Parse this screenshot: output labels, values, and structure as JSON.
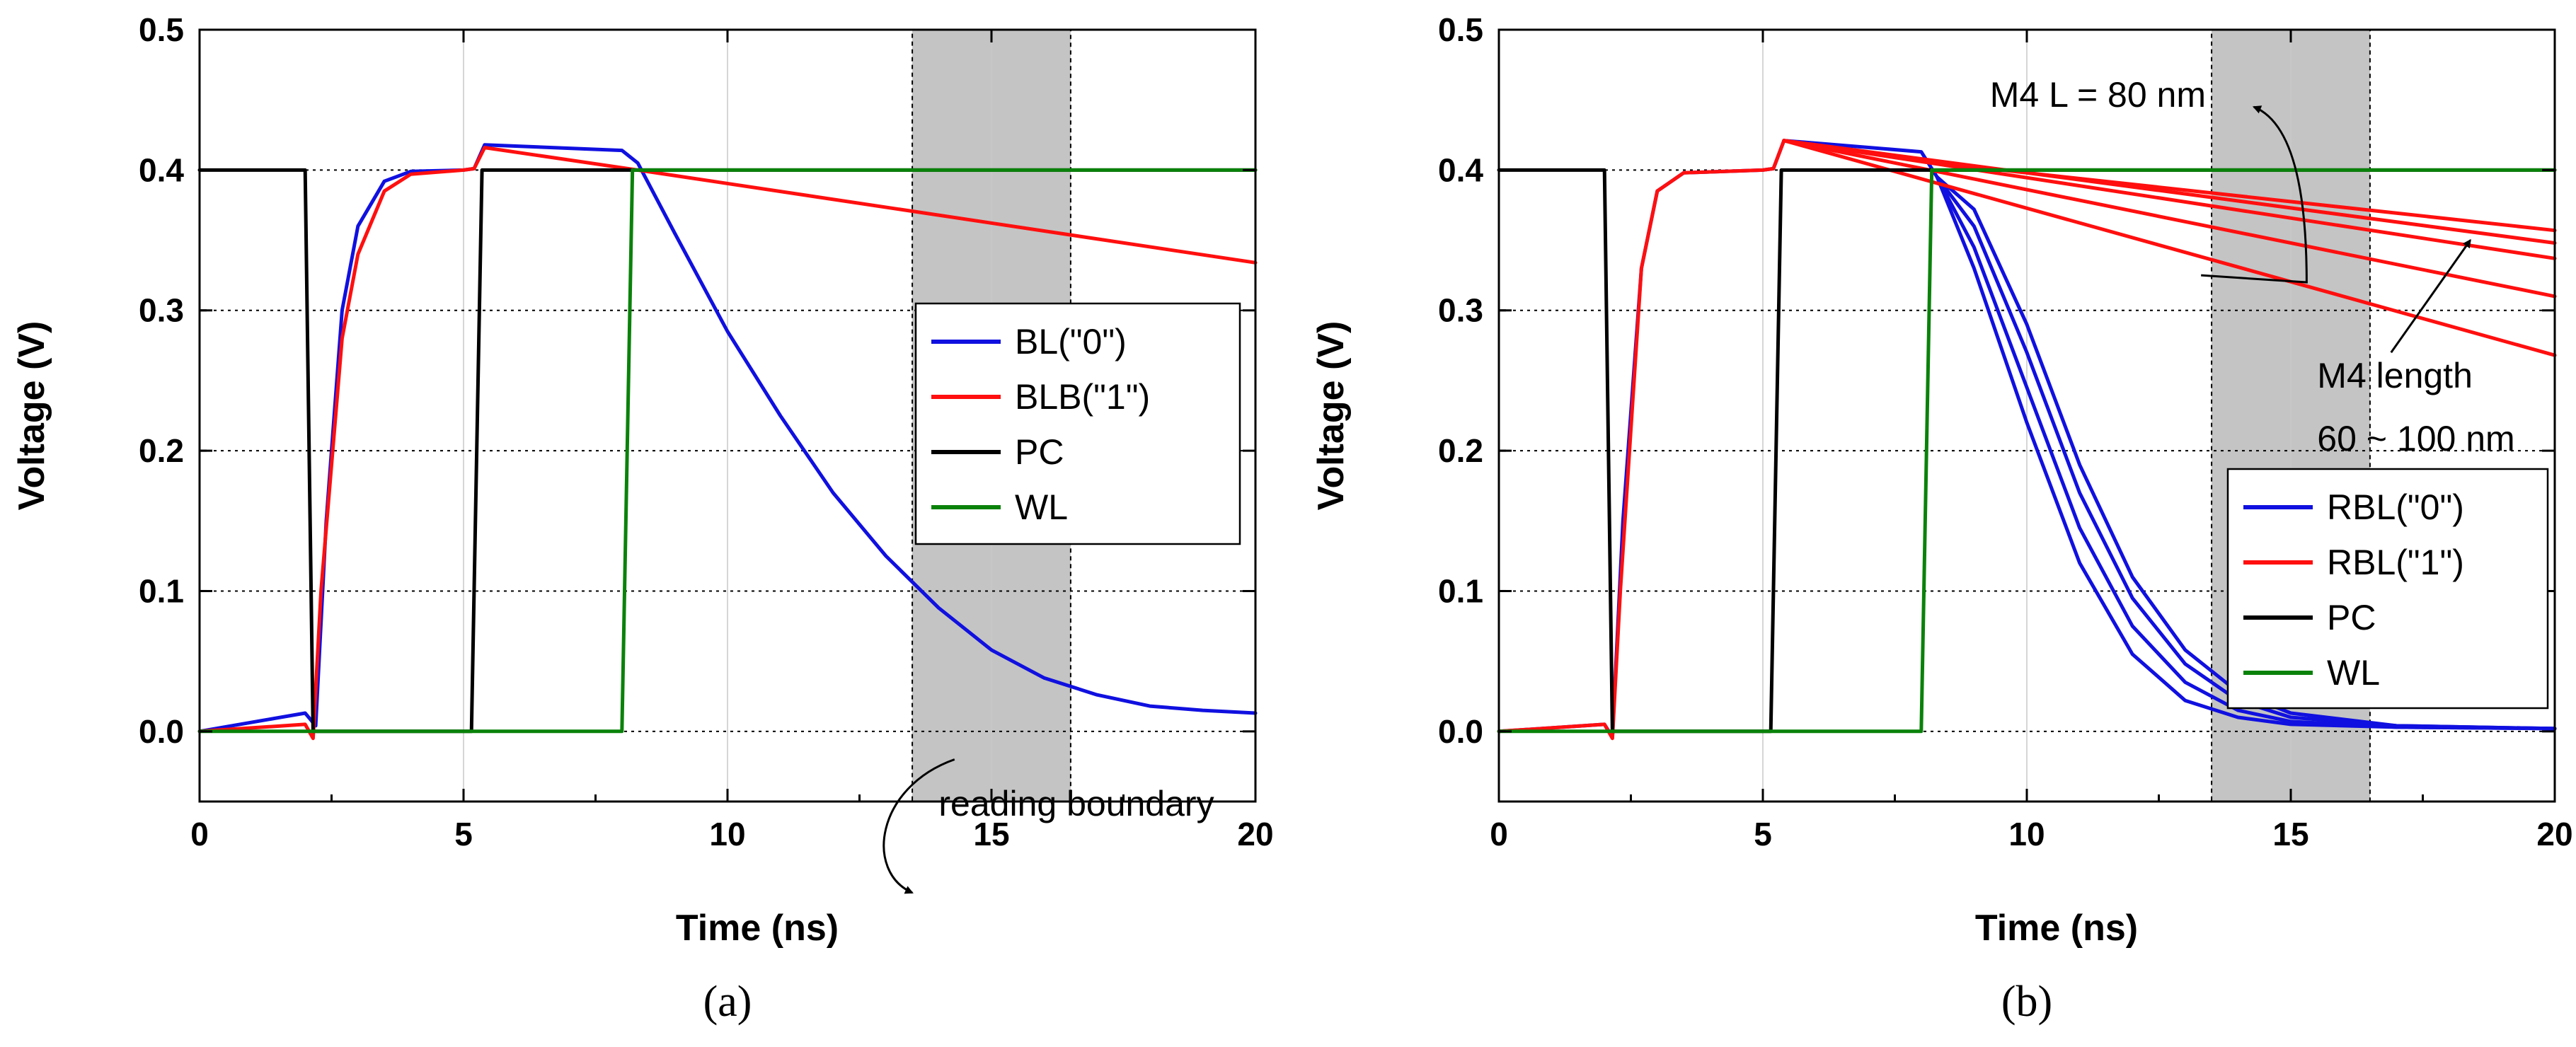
{
  "chart_data": [
    {
      "type": "line",
      "caption": "(a)",
      "xlabel": "Time (ns)",
      "ylabel": "Voltage (V)",
      "xlim": [
        0,
        20
      ],
      "ylim": [
        -0.05,
        0.5
      ],
      "x_ticks": [
        "0",
        "5",
        "10",
        "15",
        "20"
      ],
      "y_ticks": [
        "0.0",
        "0.1",
        "0.2",
        "0.3",
        "0.4",
        "0.5"
      ],
      "shaded_region": [
        13.5,
        16.5
      ],
      "legend_position": "center-right",
      "annotations": [
        {
          "text": "reading boundary",
          "x": 14.0,
          "y": -0.06
        }
      ],
      "series": [
        {
          "name": "BL(\"0\")",
          "color": "#1010e0",
          "points": [
            [
              0,
              0
            ],
            [
              2.0,
              0.013
            ],
            [
              2.2,
              0.004
            ],
            [
              2.4,
              0.15
            ],
            [
              2.7,
              0.3
            ],
            [
              3.0,
              0.36
            ],
            [
              3.5,
              0.392
            ],
            [
              4.0,
              0.399
            ],
            [
              5.0,
              0.4
            ],
            [
              5.2,
              0.401
            ],
            [
              5.4,
              0.418
            ],
            [
              8.0,
              0.414
            ],
            [
              8.3,
              0.405
            ],
            [
              9.0,
              0.355
            ],
            [
              10,
              0.285
            ],
            [
              11,
              0.225
            ],
            [
              12,
              0.17
            ],
            [
              13,
              0.125
            ],
            [
              14,
              0.088
            ],
            [
              15,
              0.058
            ],
            [
              16,
              0.038
            ],
            [
              17,
              0.026
            ],
            [
              18,
              0.018
            ],
            [
              19,
              0.015
            ],
            [
              20,
              0.013
            ]
          ]
        },
        {
          "name": "BLB(\"1\")",
          "color": "#ff0f0f",
          "points": [
            [
              0,
              0
            ],
            [
              2.0,
              0.005
            ],
            [
              2.15,
              -0.005
            ],
            [
              2.3,
              0.1
            ],
            [
              2.7,
              0.28
            ],
            [
              3.0,
              0.34
            ],
            [
              3.5,
              0.385
            ],
            [
              4.0,
              0.397
            ],
            [
              5.0,
              0.4
            ],
            [
              5.2,
              0.401
            ],
            [
              5.4,
              0.416
            ],
            [
              8.3,
              0.4
            ],
            [
              20,
              0.334
            ]
          ]
        },
        {
          "name": "PC",
          "color": "#000000",
          "points": [
            [
              0,
              0.4
            ],
            [
              2.0,
              0.4
            ],
            [
              2.15,
              0.0
            ],
            [
              5.15,
              0.0
            ],
            [
              5.35,
              0.4
            ],
            [
              20,
              0.4
            ]
          ]
        },
        {
          "name": "WL",
          "color": "#0a820a",
          "points": [
            [
              0,
              0
            ],
            [
              8.0,
              0
            ],
            [
              8.2,
              0.4
            ],
            [
              20,
              0.4
            ]
          ]
        }
      ]
    },
    {
      "type": "line",
      "caption": "(b)",
      "xlabel": "Time (ns)",
      "ylabel": "Voltage (V)",
      "xlim": [
        0,
        20
      ],
      "ylim": [
        -0.05,
        0.5
      ],
      "x_ticks": [
        "0",
        "5",
        "10",
        "15",
        "20"
      ],
      "y_ticks": [
        "0.0",
        "0.1",
        "0.2",
        "0.3",
        "0.4",
        "0.5"
      ],
      "shaded_region": [
        13.5,
        16.5
      ],
      "legend_position": "lower-right",
      "annotations": [
        {
          "text": "M4 L = 80 nm",
          "x": 9.3,
          "y": 0.445
        },
        {
          "text": "M4 length",
          "x": 15.5,
          "y": 0.245
        },
        {
          "text": "60 ~ 100 nm",
          "x": 15.5,
          "y": 0.2
        }
      ],
      "series": [
        {
          "name": "RBL(\"0\")",
          "color": "#1010e0",
          "points": [
            [
              0,
              0
            ],
            [
              2.0,
              0.005
            ],
            [
              2.15,
              -0.004
            ],
            [
              2.35,
              0.15
            ],
            [
              2.7,
              0.33
            ],
            [
              3.0,
              0.385
            ],
            [
              3.5,
              0.398
            ],
            [
              5.0,
              0.4
            ],
            [
              5.2,
              0.401
            ],
            [
              5.4,
              0.421
            ],
            [
              8.0,
              0.413
            ],
            [
              8.3,
              0.395
            ],
            [
              9.0,
              0.33
            ],
            [
              10,
              0.22
            ],
            [
              11,
              0.12
            ],
            [
              12,
              0.055
            ],
            [
              13,
              0.022
            ],
            [
              14,
              0.01
            ],
            [
              15,
              0.005
            ],
            [
              17,
              0.003
            ],
            [
              20,
              0.002
            ]
          ]
        },
        {
          "name": "RBL(\"0\") variant 2",
          "color": "#1010e0",
          "legend": false,
          "points": [
            [
              8.3,
              0.395
            ],
            [
              9.0,
              0.345
            ],
            [
              10,
              0.245
            ],
            [
              11,
              0.145
            ],
            [
              12,
              0.075
            ],
            [
              13,
              0.035
            ],
            [
              14,
              0.015
            ],
            [
              15,
              0.007
            ],
            [
              17,
              0.003
            ],
            [
              20,
              0.002
            ]
          ]
        },
        {
          "name": "RBL(\"0\") variant 3",
          "color": "#1010e0",
          "legend": false,
          "points": [
            [
              8.3,
              0.395
            ],
            [
              9.0,
              0.36
            ],
            [
              10,
              0.27
            ],
            [
              11,
              0.17
            ],
            [
              12,
              0.095
            ],
            [
              13,
              0.048
            ],
            [
              14,
              0.022
            ],
            [
              15,
              0.01
            ],
            [
              17,
              0.004
            ],
            [
              20,
              0.002
            ]
          ]
        },
        {
          "name": "RBL(\"0\") variant 4",
          "color": "#1010e0",
          "legend": false,
          "points": [
            [
              8.3,
              0.395
            ],
            [
              9.0,
              0.372
            ],
            [
              10,
              0.29
            ],
            [
              11,
              0.19
            ],
            [
              12,
              0.11
            ],
            [
              13,
              0.058
            ],
            [
              14,
              0.028
            ],
            [
              15,
              0.013
            ],
            [
              17,
              0.004
            ],
            [
              20,
              0.002
            ]
          ]
        },
        {
          "name": "RBL(\"1\")",
          "color": "#ff0f0f",
          "points": [
            [
              0,
              0
            ],
            [
              2.0,
              0.005
            ],
            [
              2.15,
              -0.005
            ],
            [
              2.3,
              0.1
            ],
            [
              2.7,
              0.33
            ],
            [
              3.0,
              0.385
            ],
            [
              3.5,
              0.398
            ],
            [
              5.0,
              0.4
            ],
            [
              5.2,
              0.401
            ],
            [
              5.4,
              0.421
            ],
            [
              8.3,
              0.405
            ],
            [
              20,
              0.357
            ]
          ]
        },
        {
          "name": "RBL(\"1\") variant 2",
          "color": "#ff0f0f",
          "legend": false,
          "points": [
            [
              5.4,
              0.421
            ],
            [
              20,
              0.348
            ]
          ]
        },
        {
          "name": "RBL(\"1\") variant 3",
          "color": "#ff0f0f",
          "legend": false,
          "points": [
            [
              5.4,
              0.421
            ],
            [
              20,
              0.337
            ]
          ]
        },
        {
          "name": "RBL(\"1\") variant 4",
          "color": "#ff0f0f",
          "legend": false,
          "points": [
            [
              5.4,
              0.421
            ],
            [
              20,
              0.31
            ]
          ]
        },
        {
          "name": "RBL(\"1\") variant 5",
          "color": "#ff0f0f",
          "legend": false,
          "points": [
            [
              5.4,
              0.421
            ],
            [
              20,
              0.268
            ]
          ]
        },
        {
          "name": "PC",
          "color": "#000000",
          "points": [
            [
              0,
              0.4
            ],
            [
              2.0,
              0.4
            ],
            [
              2.15,
              0.0
            ],
            [
              5.15,
              0.0
            ],
            [
              5.35,
              0.4
            ],
            [
              20,
              0.4
            ]
          ]
        },
        {
          "name": "WL",
          "color": "#0a820a",
          "points": [
            [
              0,
              0
            ],
            [
              8.0,
              0
            ],
            [
              8.2,
              0.4
            ],
            [
              20,
              0.4
            ]
          ]
        }
      ]
    }
  ]
}
